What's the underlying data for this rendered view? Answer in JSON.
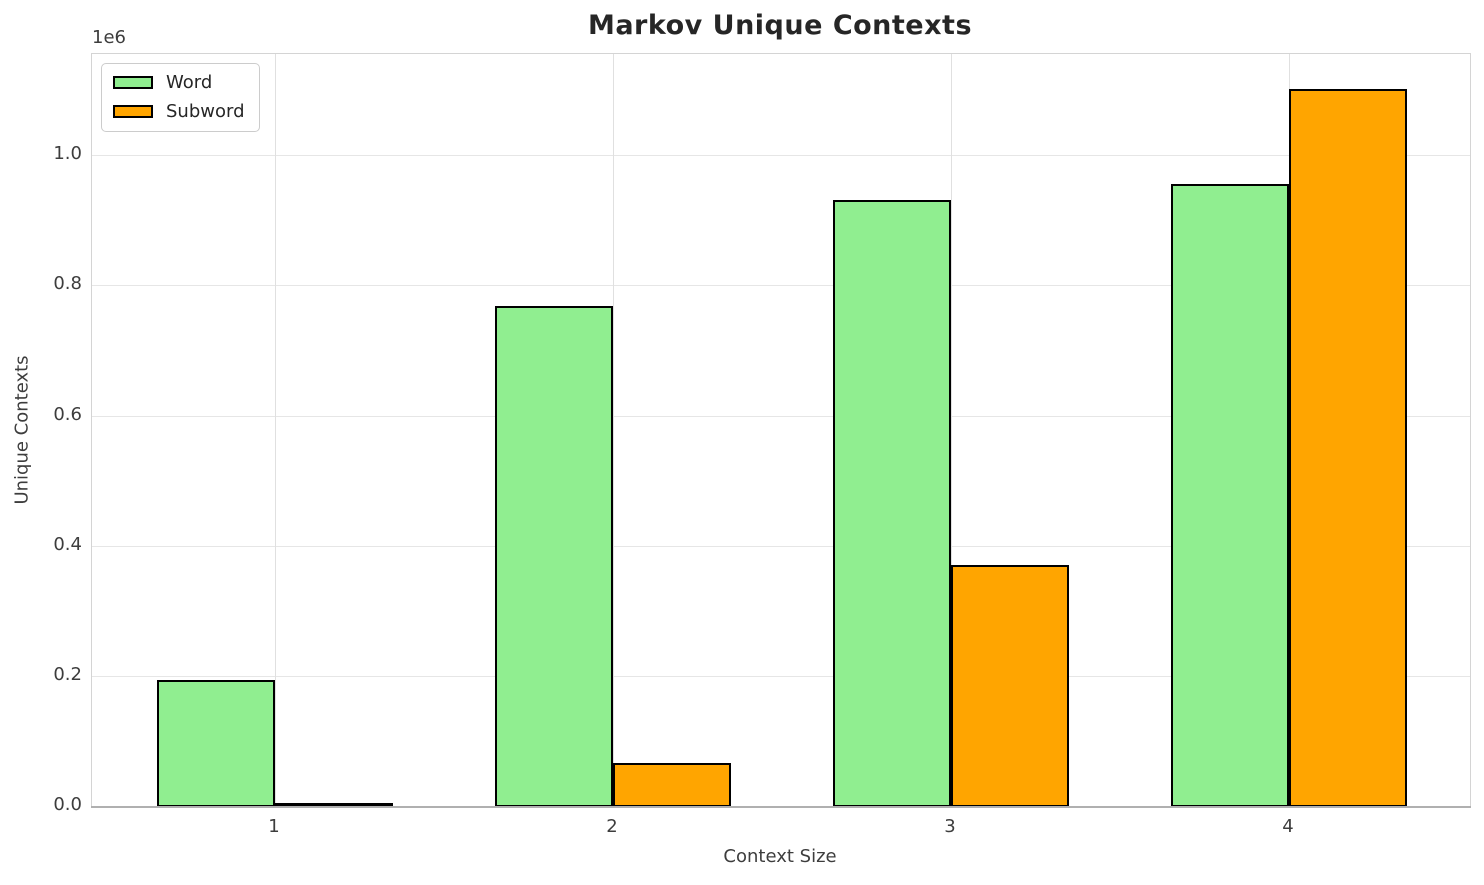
{
  "chart_data": {
    "type": "bar",
    "title": "Markov Unique Contexts",
    "xlabel": "Context Size",
    "ylabel": "Unique Contexts",
    "y_offset_text": "1e6",
    "categories": [
      "1",
      "2",
      "3",
      "4"
    ],
    "series": [
      {
        "name": "Word",
        "color": "#90EE90",
        "values": [
          195000,
          770000,
          932000,
          958000
        ]
      },
      {
        "name": "Subword",
        "color": "#FFA500",
        "values": [
          5000,
          68000,
          372000,
          1103000
        ]
      }
    ],
    "ylim": [
      0,
      1157000
    ],
    "ytick_values": [
      0,
      200000,
      400000,
      600000,
      800000,
      1000000
    ],
    "ytick_labels": [
      "0.0",
      "0.2",
      "0.4",
      "0.6",
      "0.8",
      "1.0"
    ],
    "grid": true,
    "legend_position": "upper left",
    "bar_edge_color": "#000000",
    "colors": {
      "background": "#ffffff",
      "grid": "#e6e6e6",
      "spine": "#d4d4d4",
      "x_axis_line": "#b0b0b0",
      "title_text": "#262626",
      "tick_text": "#3d3d3d"
    }
  }
}
